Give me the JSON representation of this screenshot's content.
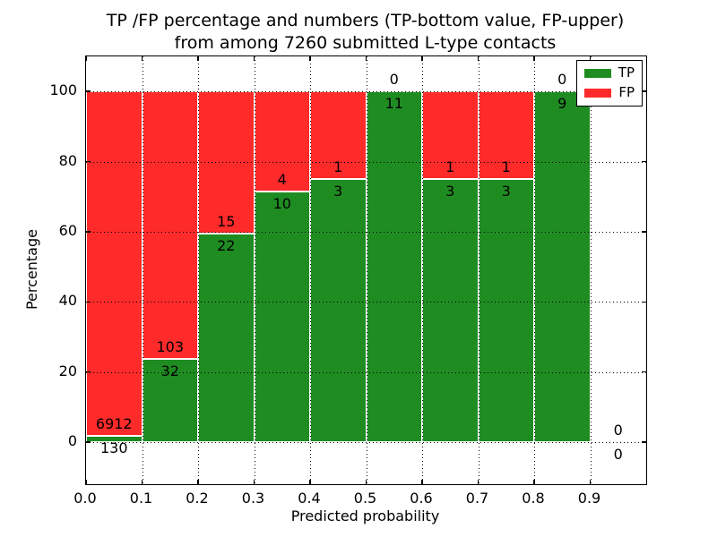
{
  "figure": {
    "title_line1": "TP /FP percentage and numbers (TP-bottom value, FP-upper)",
    "title_line2": "from among 7260 submitted L-type contacts",
    "xlabel": "Predicted probability",
    "ylabel": "Percentage"
  },
  "chart_data": {
    "type": "bar",
    "stacked": true,
    "normalized": "each bin stacked to 100%",
    "title": "TP /FP percentage and numbers (TP-bottom value, FP-upper)\nfrom among 7260 submitted L-type contacts",
    "xlabel": "Predicted probability",
    "ylabel": "Percentage",
    "xlim": [
      0.0,
      1.0
    ],
    "ylim": [
      -12,
      110
    ],
    "grid": true,
    "x_ticks": [
      {
        "value": 0.0,
        "label": "0.0"
      },
      {
        "value": 0.1,
        "label": "0.1"
      },
      {
        "value": 0.2,
        "label": "0.2"
      },
      {
        "value": 0.3,
        "label": "0.3"
      },
      {
        "value": 0.4,
        "label": "0.4"
      },
      {
        "value": 0.5,
        "label": "0.5"
      },
      {
        "value": 0.6,
        "label": "0.6"
      },
      {
        "value": 0.7,
        "label": "0.7"
      },
      {
        "value": 0.8,
        "label": "0.8"
      },
      {
        "value": 0.9,
        "label": "0.9"
      }
    ],
    "y_ticks": [
      {
        "value": 0,
        "label": "0"
      },
      {
        "value": 20,
        "label": "20"
      },
      {
        "value": 40,
        "label": "40"
      },
      {
        "value": 60,
        "label": "60"
      },
      {
        "value": 80,
        "label": "80"
      },
      {
        "value": 100,
        "label": "100"
      }
    ],
    "colors": {
      "tp": "#1f8c22",
      "fp": "#ff2a2a",
      "bar_edge": "#ffffff",
      "grid": "#000000"
    },
    "legend": {
      "position": "upper right",
      "entries": [
        {
          "label": "TP",
          "color": "#1f8c22"
        },
        {
          "label": "FP",
          "color": "#ff2a2a"
        }
      ]
    },
    "bins": [
      {
        "range": [
          0.0,
          0.1
        ],
        "tp_count": 130,
        "fp_count": 6912,
        "tp_pct": 1.85,
        "fp_pct": 98.15,
        "total_pct": 100
      },
      {
        "range": [
          0.1,
          0.2
        ],
        "tp_count": 32,
        "fp_count": 103,
        "tp_pct": 23.7,
        "fp_pct": 76.3,
        "total_pct": 100
      },
      {
        "range": [
          0.2,
          0.3
        ],
        "tp_count": 22,
        "fp_count": 15,
        "tp_pct": 59.46,
        "fp_pct": 40.54,
        "total_pct": 100
      },
      {
        "range": [
          0.3,
          0.4
        ],
        "tp_count": 10,
        "fp_count": 4,
        "tp_pct": 71.43,
        "fp_pct": 28.57,
        "total_pct": 100
      },
      {
        "range": [
          0.4,
          0.5
        ],
        "tp_count": 3,
        "fp_count": 1,
        "tp_pct": 75.0,
        "fp_pct": 25.0,
        "total_pct": 100
      },
      {
        "range": [
          0.5,
          0.6
        ],
        "tp_count": 11,
        "fp_count": 0,
        "tp_pct": 100.0,
        "fp_pct": 0.0,
        "total_pct": 100
      },
      {
        "range": [
          0.6,
          0.7
        ],
        "tp_count": 3,
        "fp_count": 1,
        "tp_pct": 75.0,
        "fp_pct": 25.0,
        "total_pct": 100
      },
      {
        "range": [
          0.7,
          0.8
        ],
        "tp_count": 3,
        "fp_count": 1,
        "tp_pct": 75.0,
        "fp_pct": 25.0,
        "total_pct": 100
      },
      {
        "range": [
          0.8,
          0.9
        ],
        "tp_count": 9,
        "fp_count": 0,
        "tp_pct": 100.0,
        "fp_pct": 0.0,
        "total_pct": 100
      },
      {
        "range": [
          0.9,
          1.0
        ],
        "tp_count": 0,
        "fp_count": 0,
        "tp_pct": 0.0,
        "fp_pct": 0.0,
        "total_pct": 0
      }
    ]
  }
}
